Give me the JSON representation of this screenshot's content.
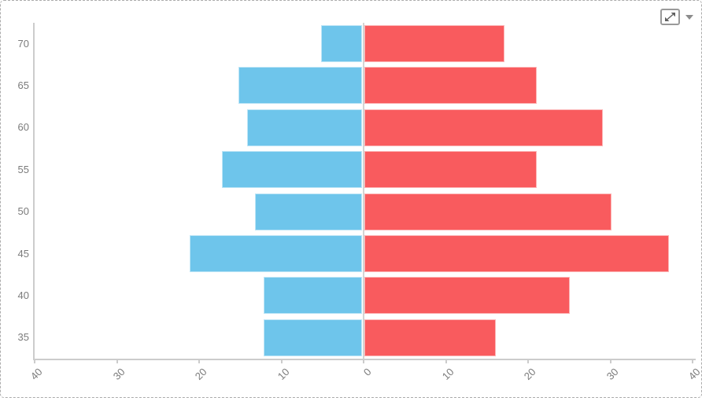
{
  "widget": {
    "background": "#ffffff",
    "border_color": "#ababab"
  },
  "toolbar": {
    "expand_icon": "expand-diagonal-arrows",
    "dropdown_icon": "caret-down",
    "icon_color": "#5f5f5f"
  },
  "chart_data": {
    "type": "bar",
    "subtype": "population-pyramid",
    "orientation": "horizontal",
    "title": "",
    "legend": "none",
    "grid": "zero-line-only",
    "categories": [
      "70",
      "65",
      "60",
      "55",
      "50",
      "45",
      "40",
      "35"
    ],
    "series": [
      {
        "name": "left",
        "side": "left",
        "color": "#6ec5eb",
        "values": [
          5,
          15,
          14,
          17,
          13,
          21,
          12,
          12
        ]
      },
      {
        "name": "right",
        "side": "right",
        "color": "#f95b5e",
        "values": [
          17,
          21,
          29,
          21,
          30,
          37,
          25,
          16
        ]
      }
    ],
    "x_axis": {
      "tick_labels": [
        "40",
        "30",
        "20",
        "10",
        "0",
        "10",
        "20",
        "30",
        "40"
      ],
      "tick_values": [
        -40,
        -30,
        -20,
        -10,
        0,
        10,
        20,
        30,
        40
      ],
      "range_abs": 40,
      "label_rotation_deg": -45,
      "axis_color": "#cccccc",
      "label_color": "#7b7b7b"
    },
    "y_axis": {
      "labels": [
        "70",
        "65",
        "60",
        "55",
        "50",
        "45",
        "40",
        "35"
      ],
      "axis_color": "#cccccc",
      "label_color": "#7b7b7b"
    }
  }
}
